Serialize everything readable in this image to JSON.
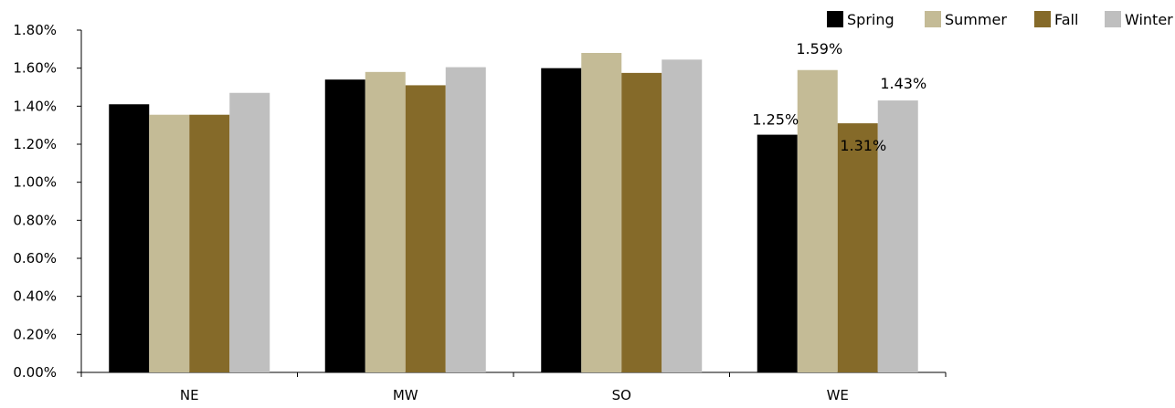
{
  "chart_data": {
    "type": "bar",
    "title": "",
    "xlabel": "",
    "ylabel": "",
    "categories": [
      "NE",
      "MW",
      "SO",
      "WE"
    ],
    "series": [
      {
        "name": "Spring",
        "color": "#000000",
        "values": [
          1.41,
          1.54,
          1.6,
          1.25
        ]
      },
      {
        "name": "Summer",
        "color": "#C4BB96",
        "values": [
          1.355,
          1.58,
          1.68,
          1.59
        ]
      },
      {
        "name": "Fall",
        "color": "#856A29",
        "values": [
          1.355,
          1.51,
          1.575,
          1.31
        ]
      },
      {
        "name": "Winter",
        "color": "#BFBFBF",
        "values": [
          1.47,
          1.605,
          1.645,
          1.43
        ]
      }
    ],
    "ylim": [
      0,
      1.8
    ],
    "y_ticks": [
      "0.00%",
      "0.20%",
      "0.40%",
      "0.60%",
      "0.80%",
      "1.00%",
      "1.20%",
      "1.40%",
      "1.60%",
      "1.80%"
    ],
    "y_tick_values": [
      0,
      0.2,
      0.4,
      0.6,
      0.8,
      1.0,
      1.2,
      1.4,
      1.6,
      1.8
    ],
    "data_labels": [
      {
        "category": "WE",
        "series": "Spring",
        "text": "1.25%"
      },
      {
        "category": "WE",
        "series": "Summer",
        "text": "1.59%"
      },
      {
        "category": "WE",
        "series": "Fall",
        "text": "1.31%"
      },
      {
        "category": "WE",
        "series": "Winter",
        "text": "1.43%"
      }
    ],
    "legend_position": "top-right",
    "grid": false
  }
}
